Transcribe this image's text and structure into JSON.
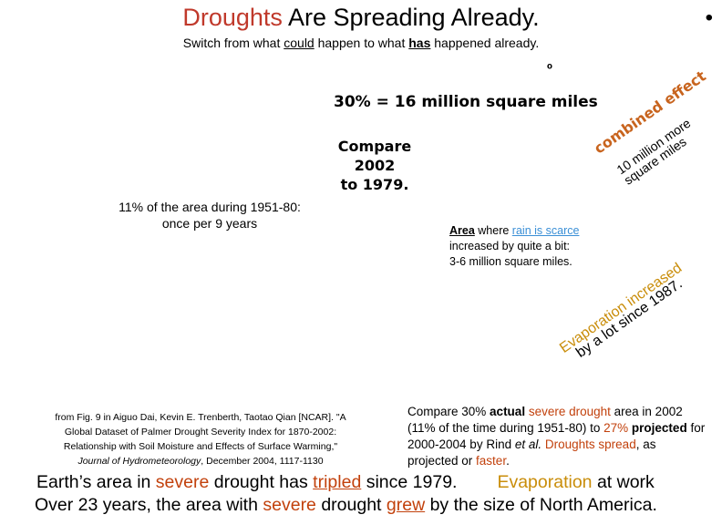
{
  "title": {
    "part1": "Droughts",
    "part2": " Are Spreading Already."
  },
  "bullet": "•",
  "subtitle": {
    "t1": "Switch from what ",
    "t2": "could",
    "t3": " happen to what ",
    "t4": "has",
    "t5": " happened already."
  },
  "degree_mark": "º",
  "stat_30": "30% = 16 million square miles",
  "compare_years": {
    "line1": "Compare 2002",
    "line2": "to 1979."
  },
  "area_1951": {
    "line1": "11% of the area during 1951-80:",
    "line2": "once per 9 years"
  },
  "rotated": {
    "combined_effect": "combined effect",
    "ten_million_line1": "10 million more",
    "ten_million_line2": "square miles",
    "evaporation_line1": "Evaporation increased",
    "evaporation_line2": "by a lot since 1987."
  },
  "rain_note": {
    "area_word": "Area",
    "t1": " where ",
    "scarce": "rain is scarce",
    "line2": "increased by quite a bit:",
    "line3": "3-6 million square miles."
  },
  "citation": {
    "line1": "from Fig. 9 in Aiguo Dai, Kevin E. Trenberth, Taotao Qian [NCAR]. \"A",
    "line2": "Global Dataset of Palmer Drought Severity Index for 1870-2002:",
    "line3": "Relationship with Soil Moisture and Effects of Surface Warming,\"",
    "journal": "Journal of Hydrometeorology",
    "line4_rest": ", December 2004, 1117-1130"
  },
  "comparison": {
    "t1": "Compare 30% ",
    "actual": "actual",
    "t2": " ",
    "severe_drought": "severe drought",
    "t3": " area in 2002 (11% of the time during 1951-80) to ",
    "pct27": "27%",
    "projected": "projected",
    "t4": " for 2000-2004 by Rind ",
    "etal": "et al.",
    "droughts_spread": "Droughts spread",
    "t5": ", as projected or ",
    "faster": "faster",
    "t6": "."
  },
  "bottom": {
    "l1_a": "Earth’s area in ",
    "l1_severe": "severe",
    "l1_b": " drought has ",
    "l1_tripled": "tripled",
    "l1_c": " since 1979.",
    "l1_evap": "Evaporation",
    "l1_d": " at work",
    "l2_a": "Over 23 years, the area with ",
    "l2_severe": "severe",
    "l2_b": " drought ",
    "l2_grew": "grew",
    "l2_c": " by the size of North America."
  },
  "colors": {
    "drought_red": "#c0392b",
    "orange": "#c98d0a",
    "rain_blue": "#3a8fd6",
    "brown_orange": "#c8641e"
  }
}
